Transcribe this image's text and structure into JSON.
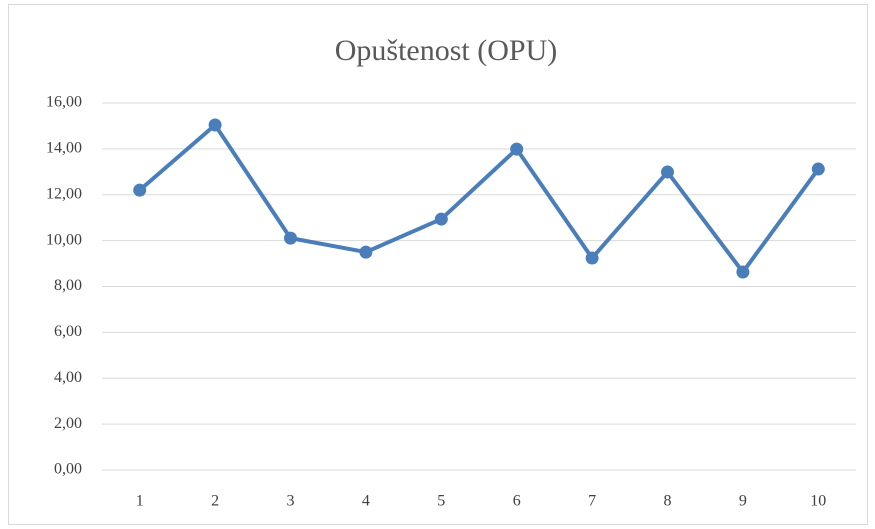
{
  "chart_data": {
    "type": "line",
    "title": "Opuštenost (OPU)",
    "categories": [
      "1",
      "2",
      "3",
      "4",
      "5",
      "6",
      "7",
      "8",
      "9",
      "10"
    ],
    "series": [
      {
        "name": "OPU",
        "color": "#4a7ebb",
        "values": [
          12.2,
          15.04,
          10.11,
          9.5,
          10.94,
          13.99,
          9.24,
          12.99,
          8.63,
          13.12
        ]
      }
    ],
    "ylim": [
      0,
      16
    ],
    "yticks": [
      {
        "value": 0,
        "label": "0,00"
      },
      {
        "value": 2,
        "label": "2,00"
      },
      {
        "value": 4,
        "label": "4,00"
      },
      {
        "value": 6,
        "label": "6,00"
      },
      {
        "value": 8,
        "label": "8,00"
      },
      {
        "value": 10,
        "label": "10,00"
      },
      {
        "value": 12,
        "label": "12,00"
      },
      {
        "value": 14,
        "label": "14,00"
      },
      {
        "value": 16,
        "label": "16,00"
      }
    ],
    "grid": true
  }
}
